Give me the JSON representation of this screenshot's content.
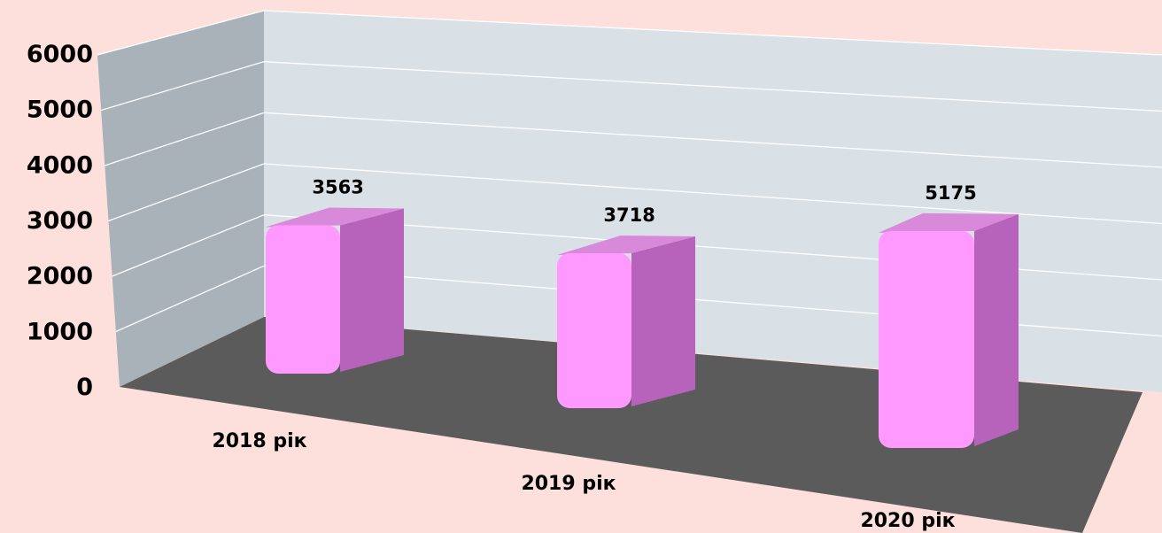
{
  "chart_data": {
    "type": "bar",
    "categories": [
      "2018 рік",
      "2019 рік",
      "2020 рік"
    ],
    "values": [
      3563,
      3718,
      5175
    ],
    "value_labels": [
      "3563",
      "3718",
      "5175"
    ],
    "title": "",
    "xlabel": "",
    "ylabel": "",
    "ylim": [
      0,
      6000
    ],
    "y_ticks": [
      "0",
      "1000",
      "2000",
      "3000",
      "4000",
      "5000",
      "6000"
    ],
    "grid": true,
    "legend": "none",
    "style": "3d-columns",
    "colors": {
      "background": "#fde0dc",
      "back_wall": "#d9e0e6",
      "side_wall": "#a9b2b9",
      "floor": "#5b5b5b",
      "bar_front": "#ff99ff",
      "bar_side": "#b763bb",
      "bar_top": "#d889d9",
      "grid_line": "#ffffff"
    }
  }
}
